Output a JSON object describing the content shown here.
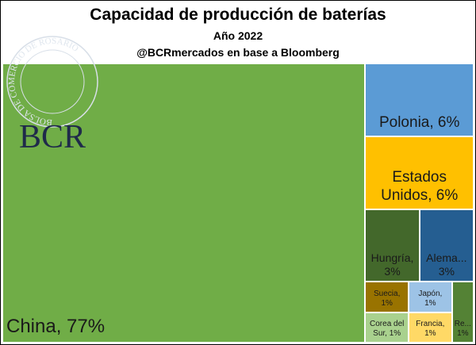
{
  "chart_data": {
    "type": "treemap",
    "title": "Capacidad de producción de baterías",
    "subtitle": "Año 2022",
    "source": "@BCRmercados en base a Bloomberg",
    "values": [
      77,
      6,
      6,
      3,
      3,
      1,
      1,
      1,
      1,
      1
    ],
    "value_labels": [
      "China, 77%",
      "Polonia, 6%",
      "Estados Unidos, 6%",
      "Hungría, 3%",
      "Alema... 3%",
      "Suecia, 1%",
      "Japón, 1%",
      "Corea del Sur, 1%",
      "Francia, 1%",
      "Re... 1%"
    ],
    "colors": [
      "#70ad47",
      "#5b9bd5",
      "#ffc000",
      "#43682b",
      "#255e91",
      "#997300",
      "#9dc3e6",
      "#a9d18e",
      "#ffd966",
      "#548235"
    ]
  },
  "logo": {
    "text": "BCR",
    "ring": "BOLSA DE COMERCIO DE ROSARIO"
  }
}
